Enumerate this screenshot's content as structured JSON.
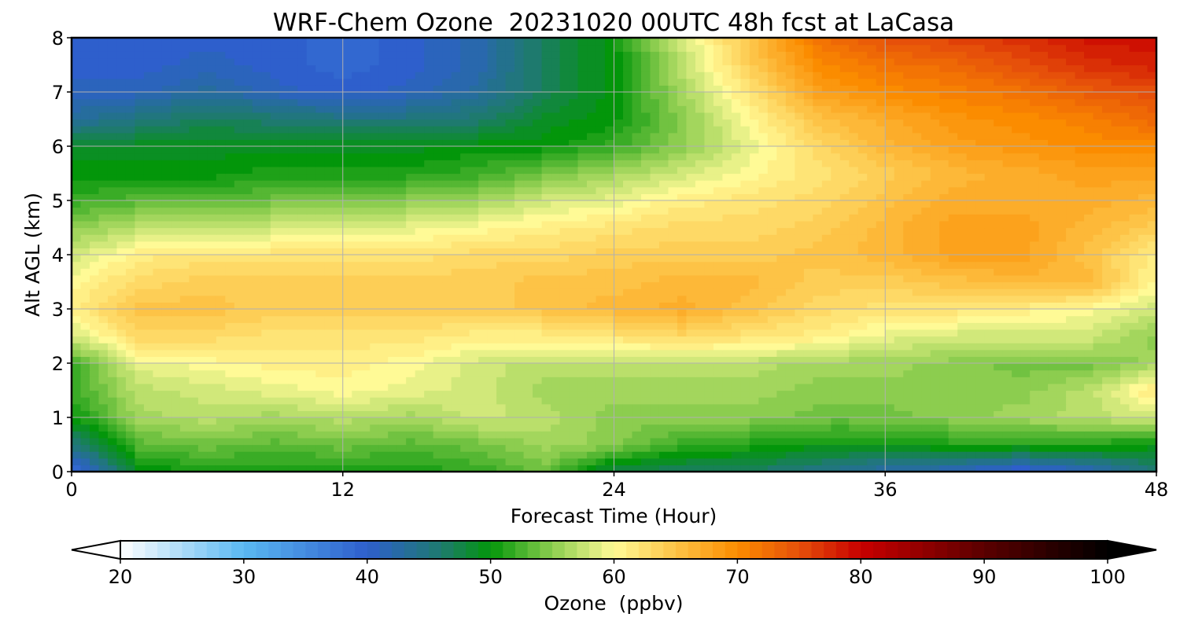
{
  "chart_data": {
    "type": "heatmap",
    "title": "WRF-Chem Ozone  20231020 00UTC 48h fcst at LaCasa",
    "xlabel": "Forecast Time (Hour)",
    "ylabel": "Alt AGL (km)",
    "xlim": [
      0,
      48
    ],
    "ylim": [
      0,
      8
    ],
    "xticks": [
      0,
      12,
      24,
      36,
      48
    ],
    "yticks": [
      0,
      1,
      2,
      3,
      4,
      5,
      6,
      7,
      8
    ],
    "grid": true,
    "x": [
      0,
      3,
      6,
      9,
      12,
      15,
      18,
      21,
      24,
      27,
      30,
      33,
      36,
      39,
      42,
      45,
      48
    ],
    "y": [
      0.05,
      0.5,
      1,
      1.5,
      2,
      2.5,
      3,
      3.5,
      4,
      4.5,
      5,
      5.5,
      6,
      6.5,
      7,
      7.5,
      8
    ],
    "z": [
      [
        38,
        50,
        51,
        51,
        51,
        51,
        52,
        54,
        48,
        47,
        47,
        45,
        43,
        42,
        40,
        42,
        46
      ],
      [
        45,
        53,
        54,
        53,
        54,
        53,
        54,
        56,
        55,
        52,
        51,
        50,
        50,
        51,
        51,
        51,
        50
      ],
      [
        50,
        56,
        57,
        56,
        57,
        56,
        58,
        57,
        55,
        55,
        55,
        54,
        54,
        55,
        56,
        57,
        58
      ],
      [
        52,
        57,
        58,
        59,
        60,
        59,
        58,
        56,
        56,
        56,
        56,
        55,
        55,
        55,
        55,
        57,
        62
      ],
      [
        52,
        59,
        60,
        61,
        61,
        60,
        58,
        57,
        57,
        57,
        57,
        56,
        56,
        55,
        54,
        54,
        56
      ],
      [
        58,
        63,
        63,
        62,
        62,
        62,
        61,
        61,
        62,
        63,
        62,
        61,
        59,
        58,
        58,
        58,
        55
      ],
      [
        61,
        65,
        65,
        64,
        64,
        64,
        64,
        65,
        66,
        67,
        65,
        63,
        62,
        62,
        61,
        60,
        58
      ],
      [
        60,
        63,
        64,
        64,
        64,
        64,
        64,
        65,
        65,
        66,
        66,
        64,
        64,
        65,
        66,
        66,
        60
      ],
      [
        58,
        61,
        62,
        62,
        62,
        62,
        63,
        63,
        64,
        64,
        64,
        65,
        66,
        68,
        68,
        65,
        61
      ],
      [
        55,
        57,
        57,
        58,
        58,
        59,
        60,
        61,
        62,
        63,
        63,
        64,
        66,
        68,
        68,
        66,
        64
      ],
      [
        52,
        53,
        53,
        54,
        54,
        55,
        56,
        58,
        59,
        61,
        62,
        63,
        65,
        67,
        67,
        67,
        66
      ],
      [
        50,
        50,
        50,
        51,
        51,
        51,
        52,
        54,
        56,
        58,
        60,
        62,
        64,
        66,
        67,
        68,
        68
      ],
      [
        49,
        49,
        49,
        49,
        49,
        49,
        50,
        50,
        52,
        55,
        59,
        63,
        66,
        68,
        69,
        70,
        70
      ],
      [
        43,
        45,
        47,
        46,
        45,
        45,
        46,
        49,
        50,
        55,
        60,
        65,
        67,
        69,
        70,
        71,
        73
      ],
      [
        41,
        41,
        43,
        41,
        40,
        41,
        43,
        47,
        50,
        56,
        62,
        68,
        70,
        71,
        72,
        74,
        75
      ],
      [
        40,
        40,
        41,
        40,
        39,
        40,
        42,
        47,
        50,
        57,
        64,
        70,
        72,
        73,
        75,
        77,
        78
      ],
      [
        40,
        40,
        40,
        40,
        39,
        40,
        42,
        47,
        50,
        58,
        65,
        72,
        75,
        76,
        77,
        79,
        79
      ]
    ],
    "colorbar": {
      "label": "Ozone  (ppbv)",
      "min": 20,
      "max": 100,
      "ticks": [
        20,
        30,
        40,
        50,
        60,
        70,
        80,
        90,
        100
      ],
      "extend": "both",
      "stops": [
        {
          "v": 20,
          "c": "#ffffff"
        },
        {
          "v": 30,
          "c": "#5ab8f2"
        },
        {
          "v": 40,
          "c": "#2e5fcc"
        },
        {
          "v": 46,
          "c": "#1e7a6e"
        },
        {
          "v": 50,
          "c": "#03960a"
        },
        {
          "v": 55,
          "c": "#8ccd4f"
        },
        {
          "v": 60,
          "c": "#fffa96"
        },
        {
          "v": 65,
          "c": "#fdc346"
        },
        {
          "v": 70,
          "c": "#fb8c00"
        },
        {
          "v": 75,
          "c": "#e6500a"
        },
        {
          "v": 80,
          "c": "#c80000"
        },
        {
          "v": 90,
          "c": "#5a0000"
        },
        {
          "v": 100,
          "c": "#000000"
        }
      ]
    }
  }
}
